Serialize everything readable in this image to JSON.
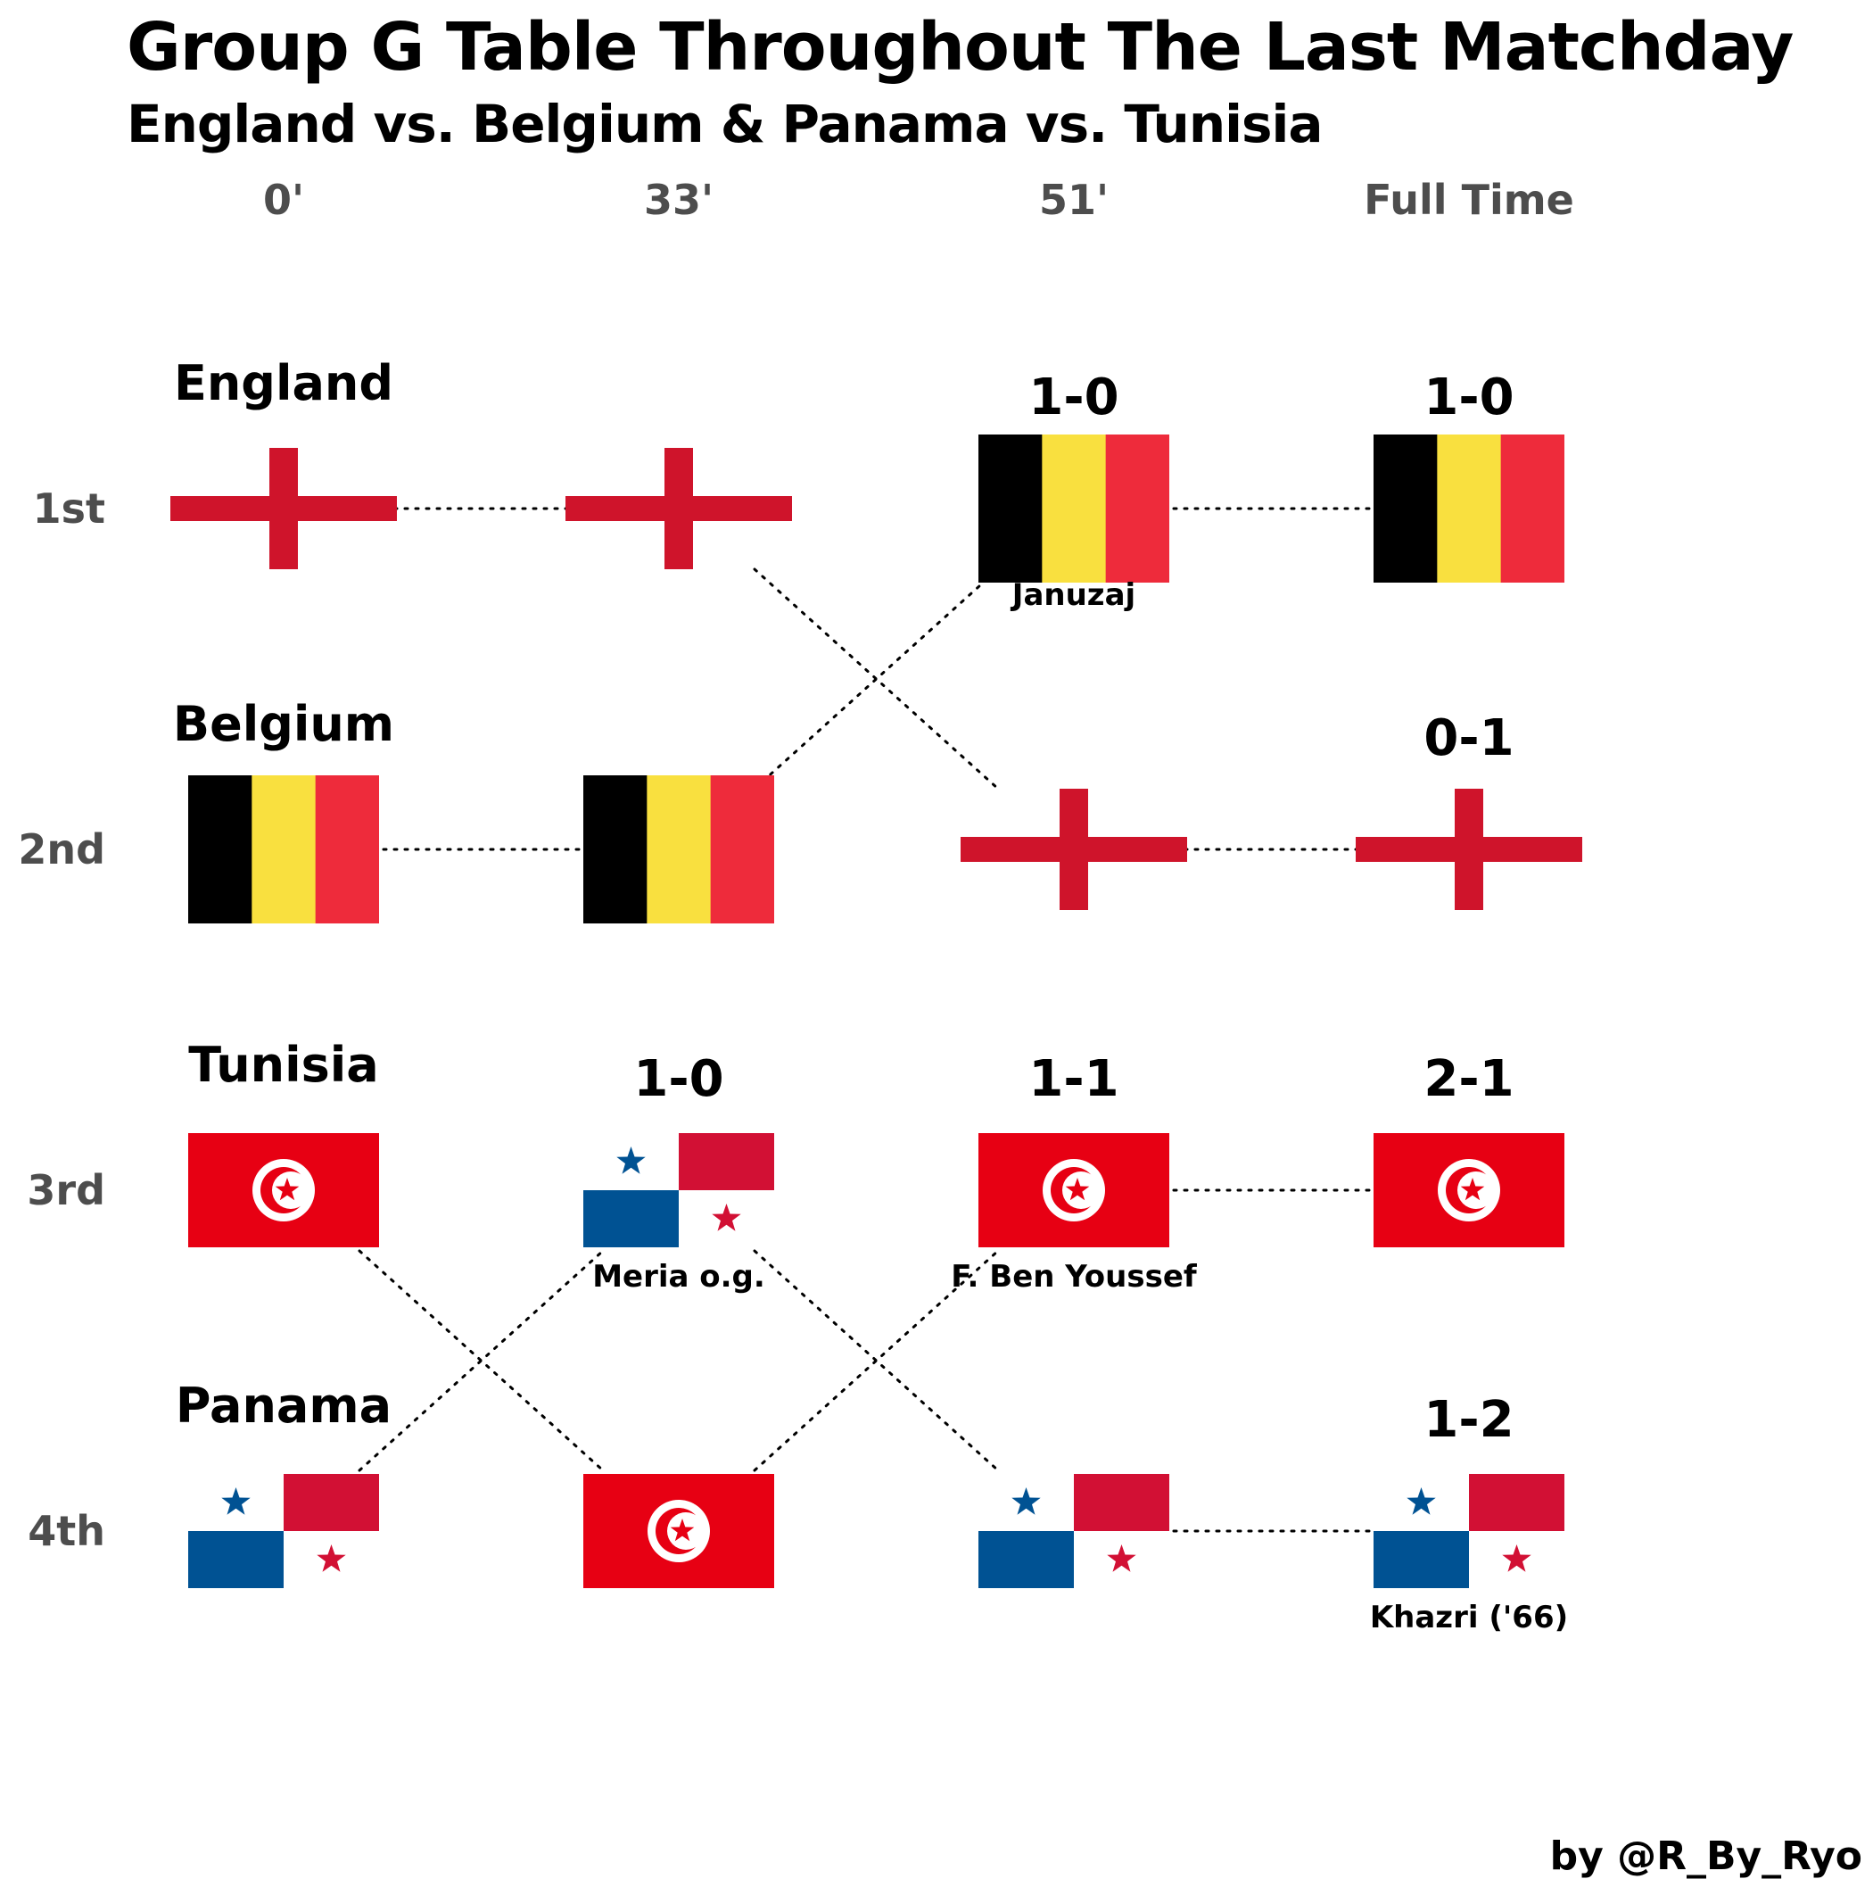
{
  "header": {
    "title": "Group G Table Throughout The Last Matchday",
    "subtitle": "England vs. Belgium & Panama vs. Tunisia"
  },
  "credit": "by @R_By_Ryo",
  "colors": {
    "england_red": "#CF142B",
    "belgium_black": "#000000",
    "belgium_yellow": "#F9E03F",
    "belgium_red": "#EE2B3B",
    "tunisia_red": "#E70013",
    "panama_blue": "#005293",
    "panama_red": "#D21034",
    "axis_text": "#4d4d4d"
  },
  "chart_data": {
    "type": "bump",
    "x": [
      "0'",
      "33'",
      "51'",
      "Full Time"
    ],
    "y": [
      "1st",
      "2nd",
      "3rd",
      "4th"
    ],
    "grid": false,
    "series": [
      {
        "name": "England",
        "flag": "england-flag-icon",
        "ranks": [
          1,
          1,
          2,
          2
        ]
      },
      {
        "name": "Belgium",
        "flag": "belgium-flag-icon",
        "ranks": [
          2,
          2,
          1,
          1
        ]
      },
      {
        "name": "Tunisia",
        "flag": "tunisia-flag-icon",
        "ranks": [
          3,
          4,
          3,
          3
        ]
      },
      {
        "name": "Panama",
        "flag": "panama-flag-icon",
        "ranks": [
          4,
          3,
          4,
          4
        ]
      }
    ],
    "scores": [
      {
        "x": "33'",
        "rank": 3,
        "text": "1-0"
      },
      {
        "x": "51'",
        "rank": 1,
        "text": "1-0"
      },
      {
        "x": "51'",
        "rank": 3,
        "text": "1-1"
      },
      {
        "x": "Full Time",
        "rank": 1,
        "text": "1-0"
      },
      {
        "x": "Full Time",
        "rank": 2,
        "text": "0-1"
      },
      {
        "x": "Full Time",
        "rank": 3,
        "text": "2-1"
      },
      {
        "x": "Full Time",
        "rank": 4,
        "text": "1-2"
      }
    ],
    "scorers": [
      {
        "x": "33'",
        "rank": 3,
        "text": "Meria o.g."
      },
      {
        "x": "51'",
        "rank": 1,
        "text": "Januzaj"
      },
      {
        "x": "51'",
        "rank": 3,
        "text": "F. Ben Youssef"
      },
      {
        "x": "Full Time",
        "rank": 4,
        "text": "Khazri ('66)"
      }
    ]
  }
}
